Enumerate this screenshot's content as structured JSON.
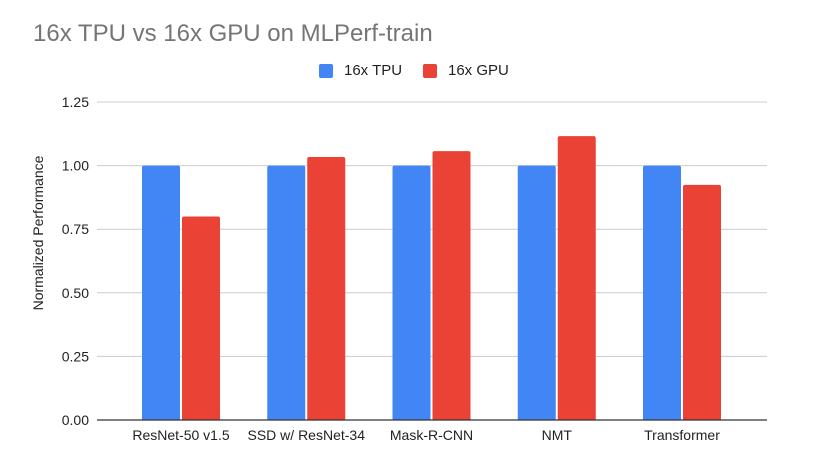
{
  "chart_data": {
    "type": "bar",
    "title": "16x TPU vs 16x GPU on MLPerf-train",
    "xlabel": "",
    "ylabel": "Normalized Performance",
    "categories": [
      "ResNet-50 v1.5",
      "SSD w/ ResNet-34",
      "Mask-R-CNN",
      "NMT",
      "Transformer"
    ],
    "series": [
      {
        "name": "16x TPU",
        "color": "#4285f4",
        "values": [
          1.0,
          1.0,
          1.0,
          1.0,
          1.0
        ]
      },
      {
        "name": "16x GPU",
        "color": "#ea4335",
        "values": [
          0.8,
          1.034,
          1.057,
          1.116,
          0.924
        ]
      }
    ],
    "ylim": [
      0,
      1.25
    ],
    "yticks": [
      "0.00",
      "0.25",
      "0.50",
      "0.75",
      "1.00",
      "1.25"
    ],
    "grid": true,
    "legend": "top-center"
  }
}
